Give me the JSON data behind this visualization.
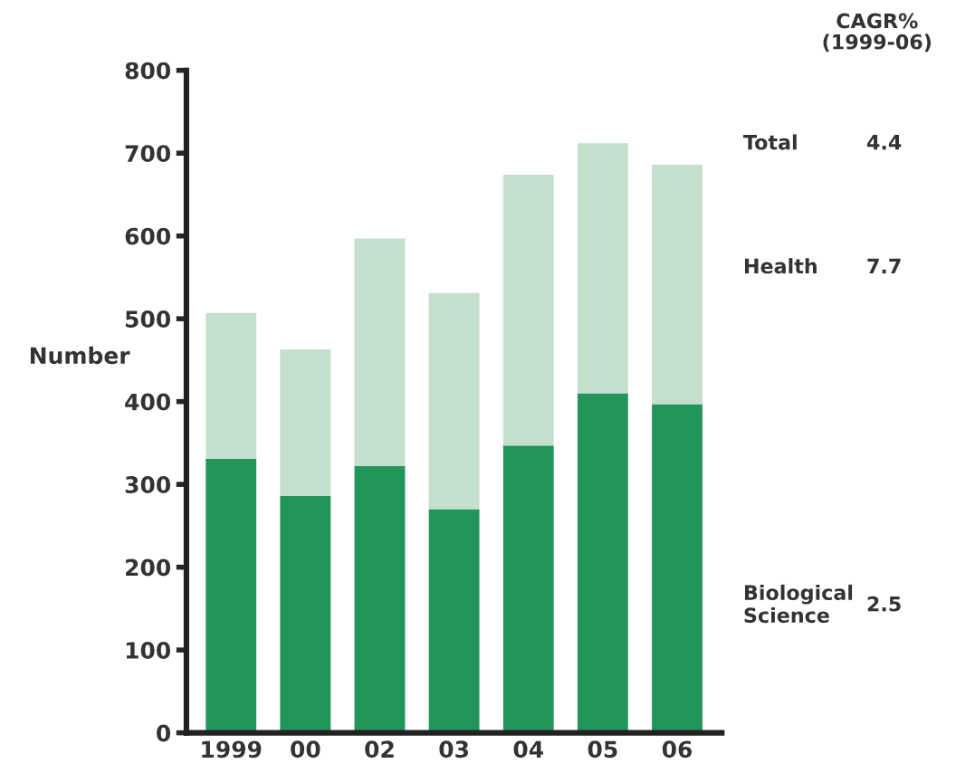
{
  "chart_data": {
    "type": "bar",
    "stacked": true,
    "ylabel": "Number",
    "categories": [
      "1999",
      "00",
      "02",
      "03",
      "04",
      "05",
      "06"
    ],
    "series": [
      {
        "name": "Biological\nScience",
        "color": "#21955a",
        "values": [
          331,
          286,
          322,
          270,
          347,
          410,
          397
        ]
      },
      {
        "name": "Health",
        "color": "#c5dfcd",
        "values": [
          176,
          177,
          275,
          261,
          327,
          302,
          289
        ]
      }
    ],
    "ylim": [
      0,
      800
    ],
    "yticks": [
      0,
      100,
      200,
      300,
      400,
      500,
      600,
      700,
      800
    ],
    "grid": false,
    "legend": false,
    "annotations": [
      "CAGR%\n(1999-06)",
      "Total",
      "4.4",
      "7.7",
      "2.5"
    ]
  }
}
